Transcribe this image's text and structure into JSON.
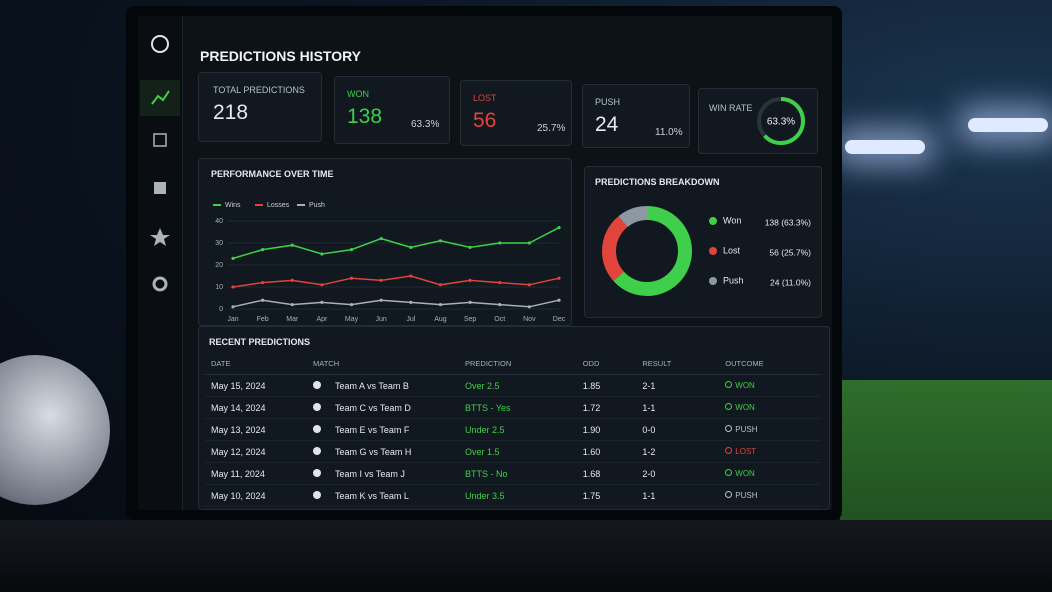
{
  "header": {
    "title": "PREDICTIONS HISTORY"
  },
  "stats": {
    "total": {
      "label": "TOTAL PREDICTIONS",
      "value": 218
    },
    "won": {
      "label": "WON",
      "value": 138,
      "pct": "63.3%"
    },
    "lost": {
      "label": "LOST",
      "value": 56,
      "pct": "25.7%"
    },
    "push": {
      "label": "PUSH",
      "value": 24,
      "pct": "11.0%"
    },
    "win_rate": {
      "label": "WIN RATE",
      "value": 63.3,
      "display": "63.3%"
    }
  },
  "performance_chart": {
    "type": "line",
    "title": "PERFORMANCE OVER TIME",
    "categories": [
      "Jan",
      "Feb",
      "Mar",
      "Apr",
      "May",
      "Jun",
      "Jul",
      "Aug",
      "Sep",
      "Oct",
      "Nov",
      "Dec"
    ],
    "series": [
      {
        "name": "Wins",
        "color": "#3fcf4a",
        "values": [
          23,
          27,
          29,
          25,
          27,
          32,
          28,
          31,
          28,
          30,
          30,
          37
        ]
      },
      {
        "name": "Losses",
        "color": "#e0443a",
        "values": [
          10,
          12,
          13,
          11,
          14,
          13,
          15,
          11,
          13,
          12,
          11,
          14
        ]
      },
      {
        "name": "Push",
        "color": "#a9b0b8",
        "values": [
          1,
          4,
          2,
          3,
          2,
          4,
          3,
          2,
          3,
          2,
          1,
          4
        ]
      }
    ],
    "ylim": [
      0,
      40
    ],
    "yticks": [
      0,
      10,
      20,
      30,
      40
    ],
    "grid": true
  },
  "breakdown": {
    "title": "PREDICTIONS BREAKDOWN",
    "items": [
      {
        "name": "Won",
        "value": 138,
        "label": "138 (63.3%)",
        "color": "#3fcf4a"
      },
      {
        "name": "Lost",
        "value": 56,
        "label": "56 (25.7%)",
        "color": "#e0443a"
      },
      {
        "name": "Push",
        "value": 24,
        "label": "24 (11.0%)",
        "color": "#8e98a3"
      }
    ]
  },
  "recent": {
    "title": "RECENT PREDICTIONS",
    "columns": [
      "DATE",
      "MATCH",
      "PREDICTION",
      "ODD",
      "RESULT",
      "OUTCOME"
    ],
    "rows": [
      {
        "date": "May 15, 2024",
        "match": "Team A vs Team B",
        "prediction": "Over 2.5",
        "odd": "1.85",
        "result": "2-1",
        "outcome": "WON",
        "color": "#3fcf4a"
      },
      {
        "date": "May 14, 2024",
        "match": "Team C vs Team D",
        "prediction": "BTTS - Yes",
        "odd": "1.72",
        "result": "1-1",
        "outcome": "WON",
        "color": "#3fcf4a"
      },
      {
        "date": "May 13, 2024",
        "match": "Team E vs Team F",
        "prediction": "Under 2.5",
        "odd": "1.90",
        "result": "0-0",
        "outcome": "PUSH",
        "color": "#b8bfc6"
      },
      {
        "date": "May 12, 2024",
        "match": "Team G vs Team H",
        "prediction": "Over 1.5",
        "odd": "1.60",
        "result": "1-2",
        "outcome": "LOST",
        "color": "#e0443a"
      },
      {
        "date": "May 11, 2024",
        "match": "Team I vs Team J",
        "prediction": "BTTS - No",
        "odd": "1.68",
        "result": "2-0",
        "outcome": "WON",
        "color": "#3fcf4a"
      },
      {
        "date": "May 10, 2024",
        "match": "Team K vs Team L",
        "prediction": "Under 3.5",
        "odd": "1.75",
        "result": "1-1",
        "outcome": "PUSH",
        "color": "#b8bfc6"
      }
    ]
  }
}
